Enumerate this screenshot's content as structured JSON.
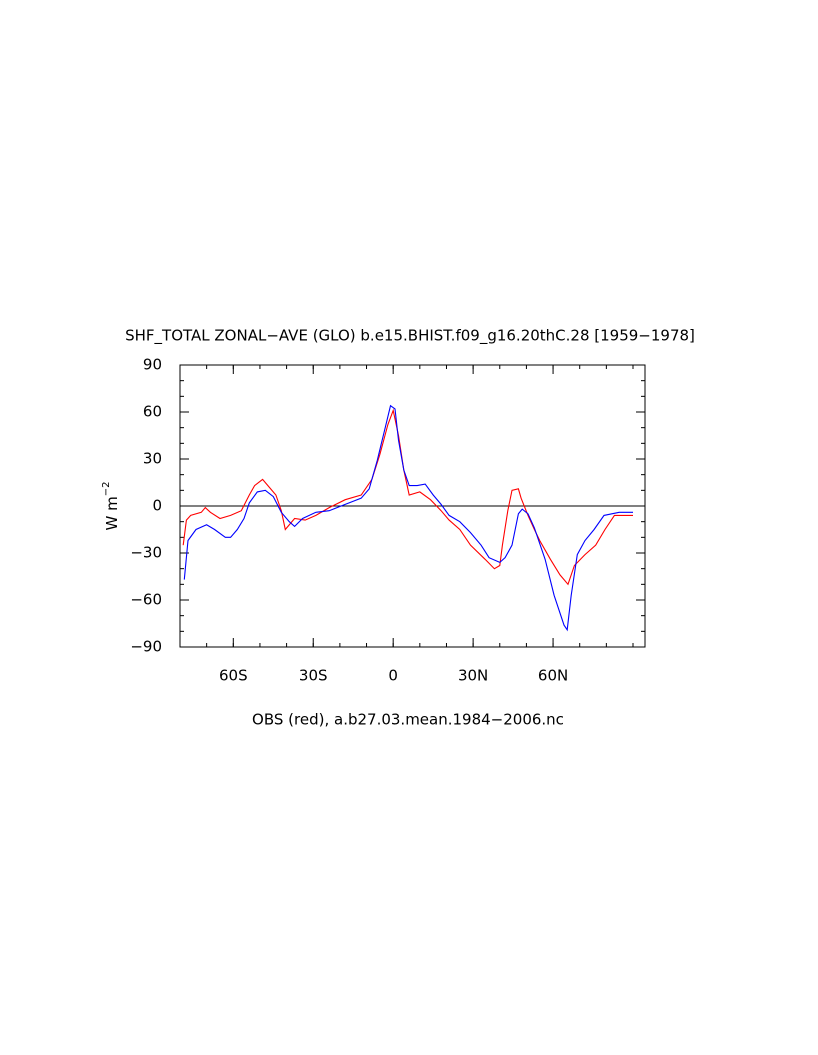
{
  "chart_data": {
    "type": "line",
    "title": "SHF_TOTAL ZONAL−AVE (GLO) b.e15.BHIST.f09_g16.20thC.28 [1959−1978]",
    "subtitle": "OBS (red), a.b27.03.mean.1984−2006.nc",
    "y_label": "W m",
    "y_label_sup": "−2",
    "xlim": [
      -80,
      94.5
    ],
    "ylim": [
      -90,
      90
    ],
    "xticks": [
      {
        "value": -60,
        "label": "60S"
      },
      {
        "value": -30,
        "label": "30S"
      },
      0,
      {
        "value": 30,
        "label": "30N"
      },
      {
        "value": 60,
        "label": "60N"
      }
    ],
    "yticks": [
      {
        "value": -90,
        "label": "−90"
      },
      {
        "value": -60,
        "label": "−60"
      },
      {
        "value": -30,
        "label": "−30"
      },
      0,
      30,
      60,
      90
    ],
    "hline": 0,
    "series": [
      {
        "color": "#ff0000",
        "x": [
          -78.8,
          -77.6,
          -76,
          -72,
          -70.5,
          -68.6,
          -65,
          -61,
          -57,
          -54,
          -52,
          -49,
          -47,
          -44,
          -42,
          -40.5,
          -37,
          -33,
          -29,
          -24,
          -18,
          -12,
          -8,
          -5,
          -2,
          0,
          2,
          4,
          6,
          10,
          14,
          18,
          21,
          25,
          29,
          34.5,
          38,
          40,
          41,
          43,
          44.6,
          47,
          48,
          50.6,
          53,
          55,
          59,
          62.6,
          65.6,
          68,
          72,
          76,
          79.5,
          83,
          90
        ],
        "values": [
          -25,
          -9,
          -6,
          -4,
          -1,
          -4,
          -8,
          -6,
          -3,
          7,
          13,
          17,
          13,
          7,
          -3,
          -15,
          -8,
          -9,
          -6,
          -1,
          4,
          7,
          17,
          33,
          52,
          61,
          45,
          23,
          7,
          9,
          4,
          -3,
          -9,
          -15,
          -25,
          -34,
          -40,
          -38,
          -25,
          -3,
          10,
          11,
          5,
          -6,
          -15,
          -22,
          -34,
          -44,
          -50,
          -38,
          -31,
          -25,
          -15,
          -6,
          -6
        ]
      },
      {
        "color": "#0000ff",
        "x": [
          -78.4,
          -77,
          -74,
          -70,
          -67,
          -63,
          -61,
          -58.5,
          -56,
          -54,
          -51,
          -48,
          -45,
          -42,
          -39,
          -37,
          -34,
          -29,
          -24,
          -18,
          -12,
          -9,
          -6,
          -3,
          -1,
          0.7,
          2,
          4,
          6,
          9,
          12,
          15,
          18,
          21,
          25,
          29,
          33,
          36,
          40,
          42,
          44.6,
          47,
          48.4,
          50.6,
          53,
          57,
          60.4,
          64.1,
          65.3,
          66.8,
          69.1,
          72,
          75.4,
          79.1,
          84.8,
          90
        ],
        "values": [
          -47,
          -22,
          -15,
          -12,
          -15,
          -20,
          -20,
          -15,
          -8,
          2,
          9,
          10,
          6,
          -4,
          -10,
          -13,
          -8,
          -4,
          -3,
          1,
          5,
          11,
          29,
          50,
          64,
          62,
          42,
          23,
          13,
          13,
          14,
          7,
          1,
          -6,
          -10,
          -17,
          -25,
          -33,
          -36,
          -33,
          -25,
          -5,
          -2,
          -5,
          -14,
          -34,
          -57,
          -76,
          -79,
          -57,
          -31,
          -22,
          -15,
          -6,
          -4,
          -4
        ]
      }
    ]
  }
}
